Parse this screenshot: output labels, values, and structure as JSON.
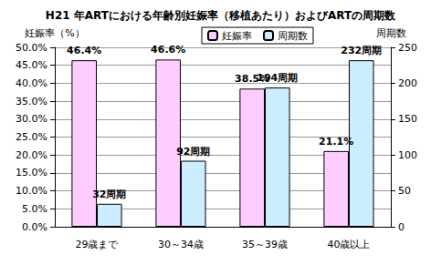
{
  "chart_data": {
    "type": "bar",
    "title": "H21 年ARTにおける年齢別妊娠率（移植あたり）およびARTの周期数",
    "categories": [
      "29歳まで",
      "30～34歳",
      "35～39歳",
      "40歳以上"
    ],
    "series": [
      {
        "name": "妊娠率",
        "color": "#ffccff",
        "axis": "y",
        "values": [
          46.4,
          46.6,
          38.5,
          21.1
        ],
        "value_labels": [
          "46.4%",
          "46.6%",
          "38.5%",
          "21.1%"
        ]
      },
      {
        "name": "周期数",
        "color": "#ccecff",
        "axis": "y2",
        "values": [
          32,
          92,
          194,
          232
        ],
        "value_labels": [
          "32周期",
          "92周期",
          "194周期",
          "232周期"
        ]
      }
    ],
    "y_label": "妊娠率（%）",
    "y2_label": "周期数",
    "ylim": [
      0,
      50
    ],
    "yticks": [
      {
        "value": 0,
        "label": "0.0%"
      },
      {
        "value": 5,
        "label": "5.0%"
      },
      {
        "value": 10,
        "label": "10.0%"
      },
      {
        "value": 15,
        "label": "15.0%"
      },
      {
        "value": 20,
        "label": "20.0%"
      },
      {
        "value": 25,
        "label": "25.0%"
      },
      {
        "value": 30,
        "label": "30.0%"
      },
      {
        "value": 35,
        "label": "35.0%"
      },
      {
        "value": 40,
        "label": "40.0%"
      },
      {
        "value": 45,
        "label": "45.0%"
      },
      {
        "value": 50,
        "label": "50.0%"
      }
    ],
    "y2lim": [
      0,
      250
    ],
    "y2ticks": [
      0,
      50,
      100,
      150,
      200,
      250
    ],
    "grid": true,
    "legend": "top-right",
    "data_labels": true
  }
}
